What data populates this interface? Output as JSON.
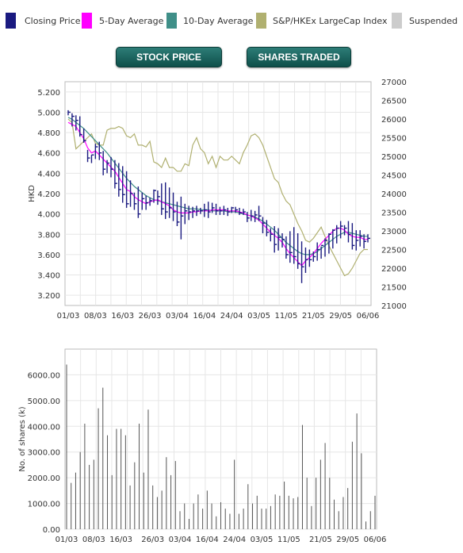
{
  "legend": {
    "items": [
      {
        "label": "Closing Price",
        "color": "#1a1a80"
      },
      {
        "label": "5-Day Average",
        "color": "#ff00ff"
      },
      {
        "label": "10-Day Average",
        "color": "#3f8f88"
      },
      {
        "label": "S&P/HKEx LargeCap Index",
        "color": "#b0b070"
      },
      {
        "label": "Suspended",
        "color": "#cccccc"
      }
    ]
  },
  "tabs": {
    "stock_price": "STOCK PRICE",
    "shares_traded": "SHARES TRADED"
  },
  "chart_data": [
    {
      "type": "line",
      "ylabel": "HKD",
      "y_ticks": [
        "5.200",
        "5.000",
        "4.800",
        "4.600",
        "4.400",
        "4.200",
        "4.000",
        "3.800",
        "3.600",
        "3.400",
        "3.200"
      ],
      "ylim": [
        3.1,
        5.3
      ],
      "y2_ticks": [
        "27000",
        "26500",
        "26000",
        "25500",
        "25000",
        "24500",
        "24000",
        "23500",
        "23000",
        "22500",
        "22000",
        "21500",
        "21000"
      ],
      "y2lim": [
        21000,
        27000
      ],
      "x_ticks": [
        "01/03",
        "08/03",
        "16/03",
        "26/03",
        "03/04",
        "16/04",
        "24/04",
        "03/05",
        "11/05",
        "21/05",
        "29/05",
        "06/06"
      ],
      "grid": true,
      "series": [
        {
          "name": "Closing Price",
          "type": "hlc",
          "high": [
            5.02,
            4.99,
            4.97,
            4.96,
            4.84,
            4.63,
            4.58,
            4.69,
            4.71,
            4.62,
            4.53,
            4.56,
            4.53,
            4.5,
            4.47,
            4.42,
            4.33,
            4.21,
            4.27,
            4.21,
            4.18,
            4.16,
            4.24,
            4.23,
            4.3,
            4.31,
            4.26,
            4.21,
            4.12,
            4.17,
            4.1,
            4.08,
            4.07,
            4.08,
            4.06,
            4.1,
            4.12,
            4.11,
            4.1,
            4.07,
            4.08,
            4.06,
            4.07,
            4.07,
            4.06,
            4.05,
            4.02,
            4.04,
            4.03,
            4.08,
            3.97,
            3.94,
            3.86,
            3.88,
            3.86,
            3.81,
            3.78,
            3.83,
            3.87,
            3.81,
            3.73,
            3.67,
            3.65,
            3.63,
            3.72,
            3.68,
            3.76,
            3.81,
            3.85,
            3.89,
            3.93,
            3.89,
            3.93,
            3.91,
            3.84,
            3.84,
            3.8,
            3.8
          ],
          "low": [
            4.97,
            4.86,
            4.82,
            4.76,
            4.7,
            4.51,
            4.5,
            4.54,
            4.53,
            4.38,
            4.4,
            4.36,
            4.25,
            4.17,
            4.11,
            4.06,
            4.07,
            4.04,
            3.96,
            4.04,
            4.04,
            4.08,
            4.11,
            4.09,
            3.99,
            3.95,
            3.96,
            3.93,
            3.88,
            3.75,
            3.9,
            3.94,
            3.96,
            3.98,
            4.0,
            3.97,
            3.96,
            4.01,
            3.99,
            3.99,
            3.99,
            3.98,
            4.01,
            4.01,
            3.99,
            3.99,
            3.92,
            3.93,
            3.92,
            3.93,
            3.81,
            3.78,
            3.73,
            3.62,
            3.64,
            3.67,
            3.56,
            3.52,
            3.51,
            3.46,
            3.32,
            3.42,
            3.48,
            3.53,
            3.54,
            3.56,
            3.58,
            3.61,
            3.66,
            3.71,
            3.76,
            3.79,
            3.72,
            3.65,
            3.64,
            3.68,
            3.66,
            3.72
          ],
          "close": [
            5.0,
            4.96,
            4.92,
            4.78,
            4.72,
            4.55,
            4.58,
            4.66,
            4.6,
            4.44,
            4.5,
            4.44,
            4.3,
            4.24,
            4.19,
            4.1,
            4.2,
            4.1,
            4.0,
            4.15,
            4.11,
            4.13,
            4.23,
            4.17,
            4.05,
            4.02,
            4.06,
            4.02,
            3.92,
            3.98,
            4.03,
            4.02,
            4.03,
            4.03,
            4.03,
            4.04,
            4.02,
            4.06,
            4.03,
            4.03,
            4.04,
            4.02,
            4.06,
            4.04,
            4.01,
            4.02,
            3.96,
            3.98,
            3.99,
            3.98,
            3.91,
            3.82,
            3.8,
            3.7,
            3.77,
            3.75,
            3.6,
            3.62,
            3.58,
            3.51,
            3.48,
            3.55,
            3.55,
            3.58,
            3.65,
            3.69,
            3.74,
            3.8,
            3.84,
            3.86,
            3.88,
            3.86,
            3.8,
            3.69,
            3.74,
            3.78,
            3.73,
            3.76
          ]
        },
        {
          "name": "5-Day Average",
          "type": "line",
          "values": [
            4.9,
            4.88,
            4.86,
            4.8,
            4.74,
            4.65,
            4.6,
            4.62,
            4.58,
            4.54,
            4.5,
            4.46,
            4.42,
            4.36,
            4.3,
            4.24,
            4.22,
            4.17,
            4.14,
            4.12,
            4.1,
            4.12,
            4.13,
            4.14,
            4.12,
            4.1,
            4.08,
            4.04,
            4.02,
            4.01,
            4.01,
            4.01,
            4.02,
            4.02,
            4.03,
            4.03,
            4.03,
            4.04,
            4.04,
            4.04,
            4.04,
            4.03,
            4.03,
            4.03,
            4.02,
            4.01,
            3.99,
            3.98,
            3.96,
            3.94,
            3.9,
            3.86,
            3.82,
            3.79,
            3.76,
            3.72,
            3.66,
            3.61,
            3.57,
            3.53,
            3.49,
            3.54,
            3.57,
            3.61,
            3.66,
            3.71,
            3.75,
            3.79,
            3.83,
            3.86,
            3.86,
            3.84,
            3.8,
            3.78,
            3.77,
            3.77,
            3.75,
            3.75
          ]
        },
        {
          "name": "10-Day Average",
          "type": "line",
          "values": [
            4.95,
            4.93,
            4.9,
            4.87,
            4.84,
            4.8,
            4.76,
            4.72,
            4.68,
            4.64,
            4.6,
            4.55,
            4.5,
            4.45,
            4.4,
            4.35,
            4.31,
            4.27,
            4.24,
            4.21,
            4.18,
            4.16,
            4.14,
            4.13,
            4.12,
            4.11,
            4.1,
            4.09,
            4.08,
            4.07,
            4.06,
            4.05,
            4.05,
            4.05,
            4.04,
            4.04,
            4.04,
            4.03,
            4.03,
            4.03,
            4.03,
            4.02,
            4.02,
            4.02,
            4.01,
            4.0,
            3.99,
            3.98,
            3.97,
            3.95,
            3.93,
            3.9,
            3.87,
            3.84,
            3.8,
            3.76,
            3.72,
            3.69,
            3.66,
            3.63,
            3.61,
            3.6,
            3.6,
            3.61,
            3.63,
            3.66,
            3.69,
            3.72,
            3.75,
            3.78,
            3.8,
            3.82,
            3.82,
            3.81,
            3.8,
            3.79,
            3.78,
            3.78
          ]
        },
        {
          "name": "S&P/HKEx LargeCap Index",
          "type": "line",
          "axis": "right",
          "values": [
            26000,
            25900,
            25200,
            25300,
            25400,
            25500,
            25600,
            25350,
            25300,
            25300,
            25700,
            25750,
            25750,
            25800,
            25750,
            25550,
            25500,
            25600,
            25300,
            25300,
            25250,
            25400,
            24850,
            24800,
            24700,
            24950,
            24700,
            24700,
            24600,
            24600,
            24800,
            24750,
            25300,
            25500,
            25200,
            25100,
            24800,
            25000,
            24700,
            25000,
            24900,
            24900,
            25000,
            24900,
            24800,
            25100,
            25300,
            25550,
            25600,
            25500,
            25300,
            25000,
            24700,
            24400,
            24300,
            24000,
            23800,
            23700,
            23450,
            23200,
            23000,
            22750,
            22700,
            22800,
            22950,
            23100,
            22850,
            22600,
            22400,
            22200,
            22000,
            21800,
            21850,
            22000,
            22200,
            22400,
            22500,
            22500
          ]
        }
      ]
    },
    {
      "type": "bar",
      "ylabel": "No. of shares (k)",
      "y_ticks": [
        "6000.00",
        "5000.00",
        "4000.00",
        "3000.00",
        "2000.00",
        "1000.00",
        "0.00"
      ],
      "ylim": [
        0,
        7000
      ],
      "x_ticks": [
        "01/03",
        "08/03",
        "16/03",
        "26/03",
        "03/04",
        "16/04",
        "24/04",
        "03/05",
        "11/05",
        "21/05",
        "29/05",
        "06/06"
      ],
      "grid": true,
      "values": [
        6400,
        1800,
        2200,
        3000,
        4100,
        2500,
        2700,
        4700,
        5500,
        3650,
        2100,
        3900,
        3900,
        3650,
        1700,
        2600,
        4100,
        2200,
        4650,
        1700,
        1250,
        1500,
        2800,
        2100,
        2650,
        700,
        1000,
        400,
        1000,
        1350,
        800,
        1500,
        1000,
        500,
        1050,
        800,
        600,
        2700,
        600,
        800,
        1750,
        1000,
        1300,
        800,
        800,
        900,
        1350,
        1300,
        1850,
        1300,
        1200,
        1250,
        4050,
        2000,
        900,
        2000,
        2700,
        3350,
        2000,
        1150,
        700,
        1250,
        1600,
        3400,
        4500,
        2950,
        300,
        700,
        1300
      ]
    }
  ]
}
